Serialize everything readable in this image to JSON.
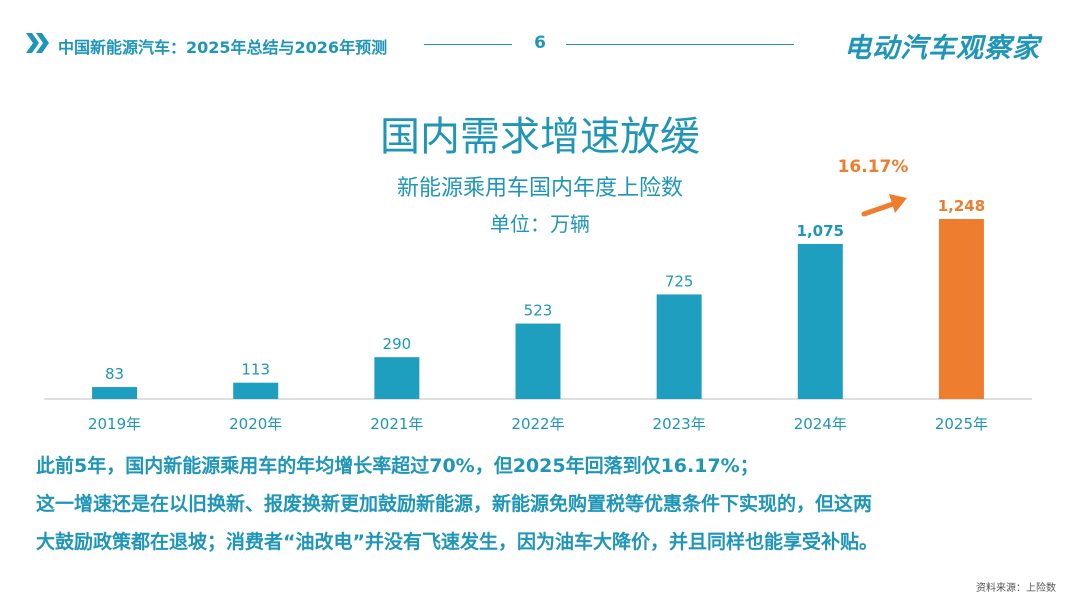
{
  "header": {
    "title": "中国新能源汽车：2025年总结与2026年预测",
    "page_number": "6",
    "brand": "电动汽车观察家"
  },
  "slide": {
    "title": "国内需求增速放缓",
    "subtitle": "新能源乘用车国内年度上险数",
    "unit": "单位：万辆"
  },
  "chart_data": {
    "type": "bar",
    "categories": [
      "2019年",
      "2020年",
      "2021年",
      "2022年",
      "2023年",
      "2024年",
      "2025年"
    ],
    "values": [
      83,
      113,
      290,
      523,
      725,
      1075,
      1248
    ],
    "value_labels": [
      "83",
      "113",
      "290",
      "523",
      "725",
      "1,075",
      "1,248"
    ],
    "colors": [
      "#1f9fc0",
      "#1f9fc0",
      "#1f9fc0",
      "#1f9fc0",
      "#1f9fc0",
      "#1f9fc0",
      "#ee7d30"
    ],
    "highlight_color": "#ee7d30",
    "annotation": "16.17%",
    "title": "新能源乘用车国内年度上险数",
    "ylabel": "",
    "xlabel": "",
    "grid": false
  },
  "body": {
    "line1": "此前5年，国内新能源乘用车的年均增长率超过70%，但2025年回落到仅16.17%；",
    "line2": "这一增速还是在以旧换新、报废换新更加鼓励新能源，新能源免购置税等优惠条件下实现的，但这两",
    "line3": "大鼓励政策都在退坡；消费者“油改电”并没有飞速发生，因为油车大降价，并且同样也能享受补贴。"
  },
  "source": "资料来源：上险数"
}
